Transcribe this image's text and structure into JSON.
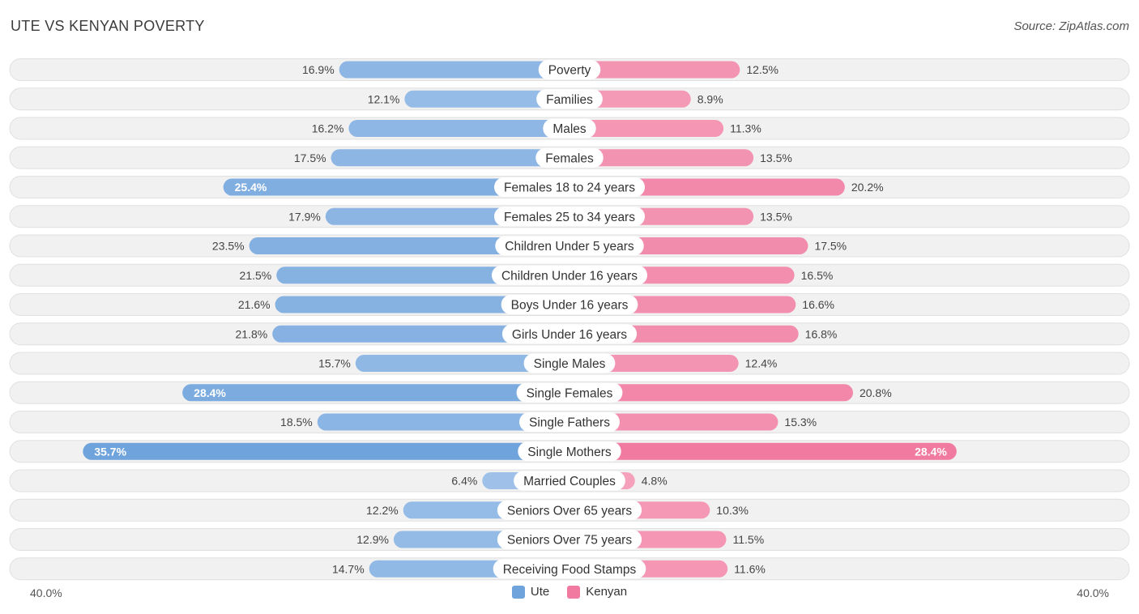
{
  "title": "UTE VS KENYAN POVERTY",
  "source": "Source: ZipAtlas.com",
  "colors": {
    "ute": "#6fa3dc",
    "ute_light": "#a9c8ec",
    "kenyan": "#f07aa0",
    "kenyan_light": "#f6a9c2",
    "row_bg": "#f1f1f1",
    "row_border": "#e0e0e0"
  },
  "chart_data": {
    "type": "bar",
    "orientation": "horizontal-diverging",
    "title": "UTE VS KENYAN POVERTY",
    "xlim": [
      -40,
      40
    ],
    "axis_left_label": "40.0%",
    "axis_right_label": "40.0%",
    "legend_position": "bottom-center",
    "categories": [
      "Poverty",
      "Families",
      "Males",
      "Females",
      "Females 18 to 24 years",
      "Females 25 to 34 years",
      "Children Under 5 years",
      "Children Under 16 years",
      "Boys Under 16 years",
      "Girls Under 16 years",
      "Single Males",
      "Single Females",
      "Single Fathers",
      "Single Mothers",
      "Married Couples",
      "Seniors Over 65 years",
      "Seniors Over 75 years",
      "Receiving Food Stamps"
    ],
    "series": [
      {
        "name": "Ute",
        "color": "#6fa3dc",
        "values": [
          16.9,
          12.1,
          16.2,
          17.5,
          25.4,
          17.9,
          23.5,
          21.5,
          21.6,
          21.8,
          15.7,
          28.4,
          18.5,
          35.7,
          6.4,
          12.2,
          12.9,
          14.7
        ],
        "labels": [
          "16.9%",
          "12.1%",
          "16.2%",
          "17.5%",
          "25.4%",
          "17.9%",
          "23.5%",
          "21.5%",
          "21.6%",
          "21.8%",
          "15.7%",
          "28.4%",
          "18.5%",
          "35.7%",
          "6.4%",
          "12.2%",
          "12.9%",
          "14.7%"
        ]
      },
      {
        "name": "Kenyan",
        "color": "#f07aa0",
        "values": [
          12.5,
          8.9,
          11.3,
          13.5,
          20.2,
          13.5,
          17.5,
          16.5,
          16.6,
          16.8,
          12.4,
          20.8,
          15.3,
          28.4,
          4.8,
          10.3,
          11.5,
          11.6
        ],
        "labels": [
          "12.5%",
          "8.9%",
          "11.3%",
          "13.5%",
          "20.2%",
          "13.5%",
          "17.5%",
          "16.5%",
          "16.6%",
          "16.8%",
          "12.4%",
          "20.8%",
          "15.3%",
          "28.4%",
          "4.8%",
          "10.3%",
          "11.5%",
          "11.6%"
        ]
      }
    ]
  }
}
